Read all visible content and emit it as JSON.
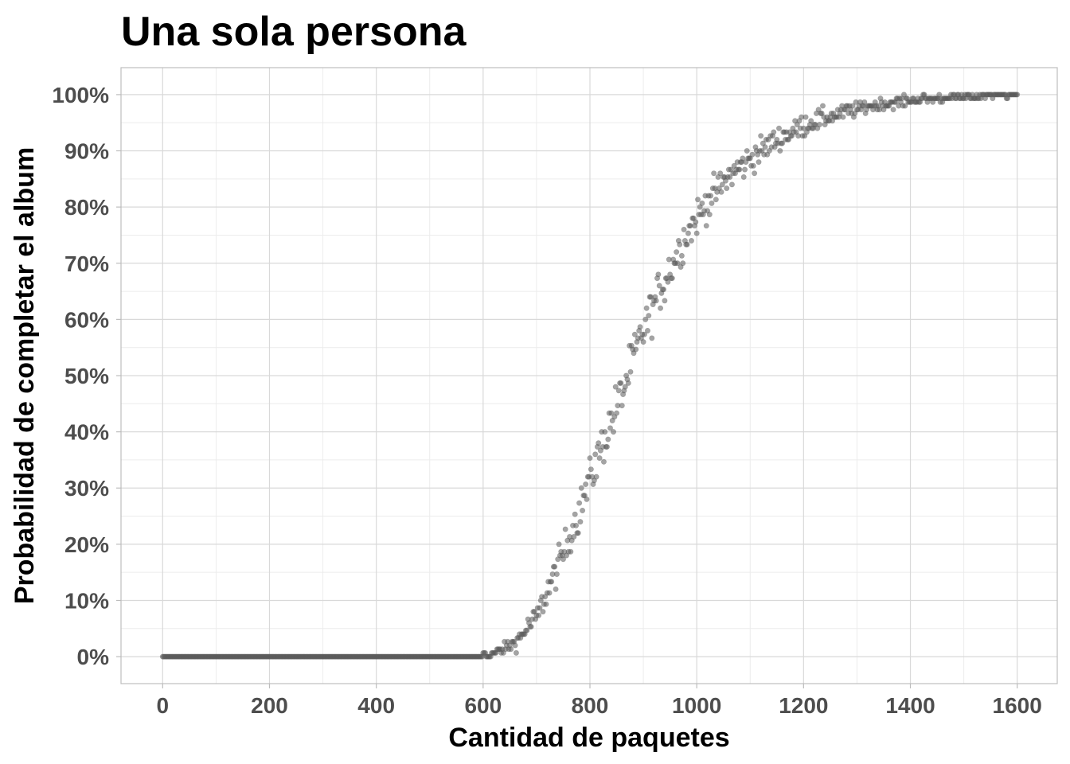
{
  "chart_data": {
    "type": "scatter",
    "title": "Una sola persona",
    "xlabel": "Cantidad de paquetes",
    "ylabel": "Probabilidad de completar el album",
    "xlim": [
      -78,
      1675
    ],
    "ylim": [
      -0.048,
      1.048
    ],
    "x_ticks": [
      0,
      200,
      400,
      600,
      800,
      1000,
      1200,
      1400,
      1600
    ],
    "x_tick_labels": [
      "0",
      "200",
      "400",
      "600",
      "800",
      "1000",
      "1200",
      "1400",
      "1600"
    ],
    "y_ticks": [
      0,
      0.1,
      0.2,
      0.3,
      0.4,
      0.5,
      0.6,
      0.7,
      0.8,
      0.9,
      1.0
    ],
    "y_tick_labels": [
      "0%",
      "10%",
      "20%",
      "30%",
      "40%",
      "50%",
      "60%",
      "70%",
      "80%",
      "90%",
      "100%"
    ],
    "grid": true,
    "point_color": "#595959",
    "point_alpha": 0.55,
    "x_step": 2,
    "x_start": 0,
    "note_series": "probability sampled every 2 packets from 0 to 1600",
    "series": [
      {
        "x_range": [
          0,
          1600
        ],
        "y_by_segment": [
          {
            "from": 0,
            "to": 580,
            "y": 0.0
          },
          {
            "from": 580,
            "to": 620,
            "y": [
              0.0,
              0.005
            ]
          },
          {
            "from": 620,
            "to": 660,
            "y": [
              0.005,
              0.025
            ]
          },
          {
            "from": 660,
            "to": 700,
            "y": [
              0.025,
              0.07
            ]
          },
          {
            "from": 700,
            "to": 740,
            "y": [
              0.07,
              0.16
            ]
          },
          {
            "from": 740,
            "to": 780,
            "y": [
              0.16,
              0.26
            ]
          },
          {
            "from": 780,
            "to": 820,
            "y": [
              0.26,
              0.37
            ]
          },
          {
            "from": 820,
            "to": 860,
            "y": [
              0.37,
              0.47
            ]
          },
          {
            "from": 860,
            "to": 900,
            "y": [
              0.47,
              0.58
            ]
          },
          {
            "from": 900,
            "to": 940,
            "y": [
              0.58,
              0.67
            ]
          },
          {
            "from": 940,
            "to": 980,
            "y": [
              0.67,
              0.75
            ]
          },
          {
            "from": 980,
            "to": 1020,
            "y": [
              0.75,
              0.81
            ]
          },
          {
            "from": 1020,
            "to": 1060,
            "y": [
              0.81,
              0.855
            ]
          },
          {
            "from": 1060,
            "to": 1100,
            "y": [
              0.855,
              0.885
            ]
          },
          {
            "from": 1100,
            "to": 1150,
            "y": [
              0.885,
              0.92
            ]
          },
          {
            "from": 1150,
            "to": 1200,
            "y": [
              0.92,
              0.945
            ]
          },
          {
            "from": 1200,
            "to": 1250,
            "y": [
              0.945,
              0.962
            ]
          },
          {
            "from": 1250,
            "to": 1300,
            "y": [
              0.962,
              0.975
            ]
          },
          {
            "from": 1300,
            "to": 1350,
            "y": [
              0.975,
              0.984
            ]
          },
          {
            "from": 1350,
            "to": 1400,
            "y": [
              0.984,
              0.99
            ]
          },
          {
            "from": 1400,
            "to": 1450,
            "y": [
              0.99,
              0.994
            ]
          },
          {
            "from": 1450,
            "to": 1500,
            "y": [
              0.994,
              0.996
            ]
          },
          {
            "from": 1500,
            "to": 1550,
            "y": [
              0.996,
              0.998
            ]
          },
          {
            "from": 1550,
            "to": 1600,
            "y": [
              0.998,
              0.999
            ]
          }
        ]
      }
    ]
  }
}
